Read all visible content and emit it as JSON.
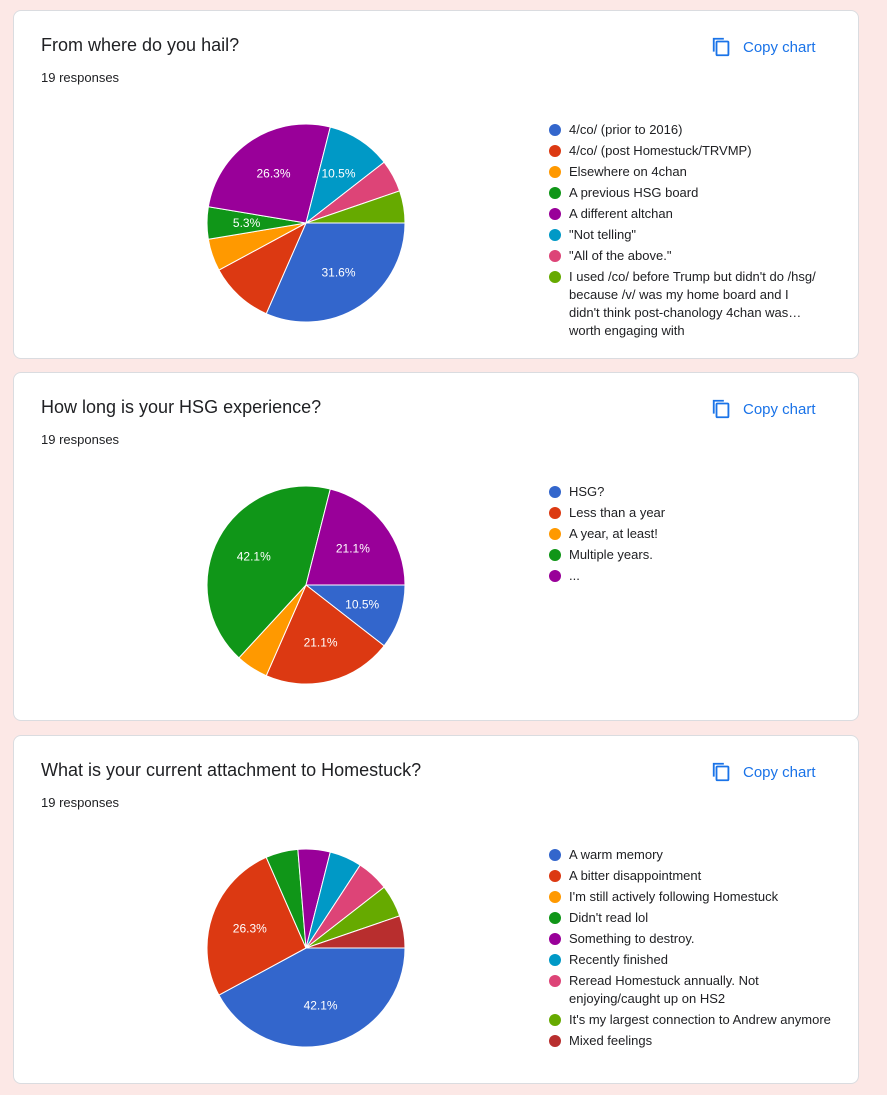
{
  "ui": {
    "copy_label": "Copy chart",
    "copy_icon": "copy-icon"
  },
  "chart_data": [
    {
      "type": "pie",
      "title": "From where do you hail?",
      "subtitle": "19 responses",
      "legend_position": "right",
      "categories": [
        "4/co/ (prior to 2016)",
        "4/co/ (post Homestuck/TRVMP)",
        "Elsewhere on 4chan",
        "A previous HSG board",
        "A different altchan",
        "\"Not telling\"",
        "\"All of the above.\"",
        "I used /co/ before Trump but didn't do /hsg/ because /v/ was my home board and I didn't think post-chanology 4chan was worth engaging with"
      ],
      "values": [
        6,
        2,
        1,
        1,
        5,
        2,
        1,
        1
      ],
      "labels": [
        "31.6%",
        "",
        "",
        "5.3%",
        "26.3%",
        "10.5%",
        "",
        ""
      ],
      "colors": [
        "#3366cc",
        "#dc3912",
        "#ff9900",
        "#109618",
        "#990099",
        "#0099c6",
        "#dd4477",
        "#66aa00"
      ]
    },
    {
      "type": "pie",
      "title": "How long is your HSG experience?",
      "subtitle": "19 responses",
      "legend_position": "right",
      "categories": [
        "HSG?",
        "Less than a year",
        "A year, at least!",
        "Multiple years.",
        "..."
      ],
      "values": [
        2,
        4,
        1,
        8,
        4
      ],
      "labels": [
        "10.5%",
        "21.1%",
        "",
        "42.1%",
        "21.1%"
      ],
      "colors": [
        "#3366cc",
        "#dc3912",
        "#ff9900",
        "#109618",
        "#990099"
      ]
    },
    {
      "type": "pie",
      "title": "What is your current attachment to Homestuck?",
      "subtitle": "19 responses",
      "legend_position": "right",
      "categories": [
        "A warm memory",
        "A bitter disappointment",
        "I'm still actively following Homestuck",
        "Didn't read lol",
        "Something to destroy.",
        "Recently finished",
        "Reread Homestuck annually. Not enjoying/caught up on HS2",
        "It's my largest connection to Andrew anymore",
        "Mixed feelings"
      ],
      "values": [
        8,
        5,
        0,
        1,
        1,
        1,
        1,
        1,
        1
      ],
      "labels": [
        "42.1%",
        "26.3%",
        "",
        "",
        "",
        "",
        "",
        "",
        ""
      ],
      "colors": [
        "#3366cc",
        "#dc3912",
        "#ff9900",
        "#109618",
        "#990099",
        "#0099c6",
        "#dd4477",
        "#66aa00",
        "#b82e2e"
      ]
    }
  ]
}
